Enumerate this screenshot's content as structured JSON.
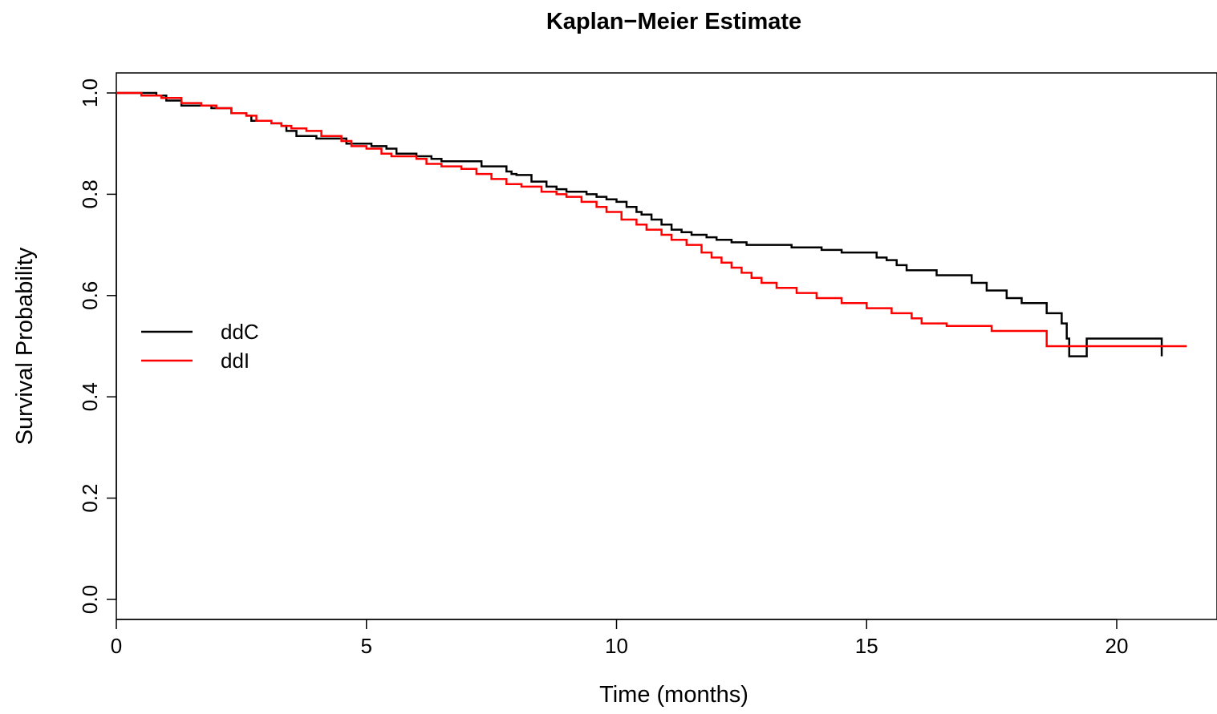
{
  "chart_data": {
    "type": "line",
    "title": "Kaplan−Meier Estimate",
    "xlabel": "Time (months)",
    "ylabel": "Survival Probability",
    "xlim": [
      0,
      22
    ],
    "ylim": [
      0,
      1.0
    ],
    "x_ticks": [
      0,
      5,
      10,
      15,
      20
    ],
    "y_ticks": [
      0.0,
      0.2,
      0.4,
      0.6,
      0.8,
      1.0
    ],
    "x_tick_labels": [
      "0",
      "5",
      "10",
      "15",
      "20"
    ],
    "y_tick_labels": [
      "0.0",
      "0.2",
      "0.4",
      "0.6",
      "0.8",
      "1.0"
    ],
    "step": true,
    "grid": false,
    "legend_position": "center-left",
    "series": [
      {
        "name": "ddC",
        "color": "#000000",
        "points": [
          [
            0,
            1.0
          ],
          [
            0.8,
            0.995
          ],
          [
            1.0,
            0.985
          ],
          [
            1.3,
            0.975
          ],
          [
            1.9,
            0.97
          ],
          [
            2.3,
            0.96
          ],
          [
            2.6,
            0.955
          ],
          [
            2.7,
            0.945
          ],
          [
            3.1,
            0.94
          ],
          [
            3.3,
            0.935
          ],
          [
            3.4,
            0.925
          ],
          [
            3.6,
            0.915
          ],
          [
            4.0,
            0.91
          ],
          [
            4.6,
            0.9
          ],
          [
            5.1,
            0.895
          ],
          [
            5.4,
            0.89
          ],
          [
            5.6,
            0.88
          ],
          [
            6.0,
            0.875
          ],
          [
            6.3,
            0.87
          ],
          [
            6.5,
            0.865
          ],
          [
            7.3,
            0.855
          ],
          [
            7.8,
            0.845
          ],
          [
            7.9,
            0.84
          ],
          [
            8.0,
            0.838
          ],
          [
            8.3,
            0.825
          ],
          [
            8.6,
            0.815
          ],
          [
            8.8,
            0.81
          ],
          [
            9.0,
            0.805
          ],
          [
            9.4,
            0.8
          ],
          [
            9.6,
            0.795
          ],
          [
            9.8,
            0.79
          ],
          [
            10.0,
            0.785
          ],
          [
            10.2,
            0.775
          ],
          [
            10.4,
            0.765
          ],
          [
            10.5,
            0.76
          ],
          [
            10.7,
            0.75
          ],
          [
            10.9,
            0.74
          ],
          [
            11.1,
            0.73
          ],
          [
            11.3,
            0.725
          ],
          [
            11.5,
            0.72
          ],
          [
            11.8,
            0.715
          ],
          [
            12.0,
            0.71
          ],
          [
            12.3,
            0.705
          ],
          [
            12.6,
            0.7
          ],
          [
            13.5,
            0.695
          ],
          [
            14.1,
            0.69
          ],
          [
            14.5,
            0.685
          ],
          [
            15.2,
            0.675
          ],
          [
            15.4,
            0.67
          ],
          [
            15.6,
            0.66
          ],
          [
            15.8,
            0.65
          ],
          [
            16.4,
            0.64
          ],
          [
            17.1,
            0.625
          ],
          [
            17.4,
            0.61
          ],
          [
            17.8,
            0.595
          ],
          [
            18.1,
            0.585
          ],
          [
            18.6,
            0.565
          ],
          [
            18.9,
            0.545
          ],
          [
            19.4,
            0.515
          ],
          [
            19.0,
            0.515
          ],
          [
            19.05,
            0.48
          ],
          [
            20.9,
            0.48
          ]
        ]
      },
      {
        "name": "ddI",
        "color": "#ff0000",
        "points": [
          [
            0,
            1.0
          ],
          [
            0.5,
            0.995
          ],
          [
            0.9,
            0.99
          ],
          [
            1.3,
            0.98
          ],
          [
            1.7,
            0.975
          ],
          [
            2.0,
            0.97
          ],
          [
            2.3,
            0.96
          ],
          [
            2.6,
            0.955
          ],
          [
            2.8,
            0.945
          ],
          [
            3.1,
            0.94
          ],
          [
            3.3,
            0.935
          ],
          [
            3.5,
            0.93
          ],
          [
            3.8,
            0.925
          ],
          [
            4.1,
            0.915
          ],
          [
            4.5,
            0.905
          ],
          [
            4.7,
            0.895
          ],
          [
            5.0,
            0.89
          ],
          [
            5.3,
            0.88
          ],
          [
            5.5,
            0.875
          ],
          [
            6.0,
            0.87
          ],
          [
            6.2,
            0.86
          ],
          [
            6.5,
            0.855
          ],
          [
            6.9,
            0.85
          ],
          [
            7.2,
            0.84
          ],
          [
            7.5,
            0.83
          ],
          [
            7.8,
            0.82
          ],
          [
            8.1,
            0.815
          ],
          [
            8.5,
            0.805
          ],
          [
            8.8,
            0.8
          ],
          [
            9.0,
            0.795
          ],
          [
            9.3,
            0.785
          ],
          [
            9.6,
            0.775
          ],
          [
            9.8,
            0.765
          ],
          [
            10.1,
            0.75
          ],
          [
            10.4,
            0.74
          ],
          [
            10.6,
            0.73
          ],
          [
            10.9,
            0.72
          ],
          [
            11.1,
            0.71
          ],
          [
            11.4,
            0.7
          ],
          [
            11.7,
            0.685
          ],
          [
            11.9,
            0.675
          ],
          [
            12.1,
            0.665
          ],
          [
            12.3,
            0.655
          ],
          [
            12.5,
            0.645
          ],
          [
            12.7,
            0.635
          ],
          [
            12.9,
            0.625
          ],
          [
            13.2,
            0.615
          ],
          [
            13.6,
            0.605
          ],
          [
            14.0,
            0.595
          ],
          [
            14.5,
            0.585
          ],
          [
            15.0,
            0.575
          ],
          [
            15.5,
            0.565
          ],
          [
            15.9,
            0.555
          ],
          [
            16.1,
            0.545
          ],
          [
            16.6,
            0.54
          ],
          [
            17.5,
            0.53
          ],
          [
            18.6,
            0.5
          ],
          [
            21.4,
            0.5
          ]
        ]
      }
    ]
  }
}
